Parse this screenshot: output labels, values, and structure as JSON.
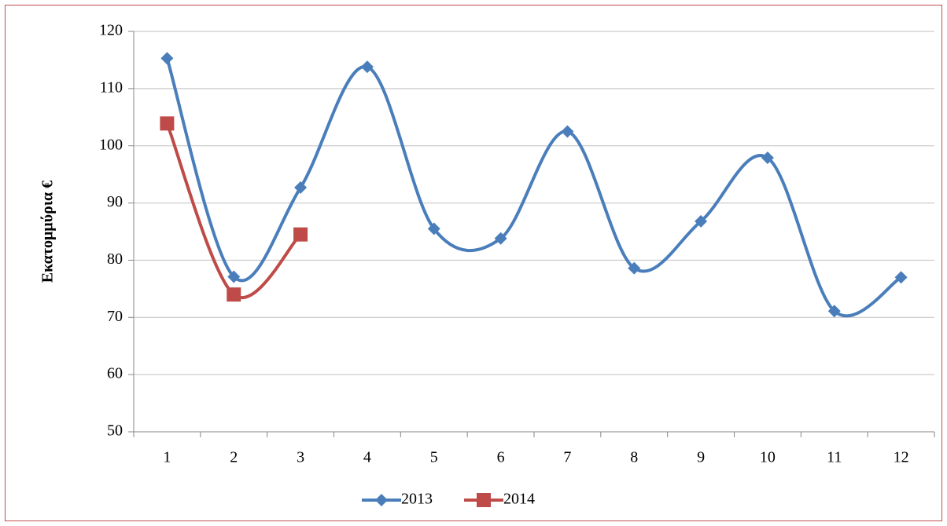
{
  "chart_data": {
    "type": "line",
    "y_label": "Εκατομμύρια €",
    "categories": [
      "1",
      "2",
      "3",
      "4",
      "5",
      "6",
      "7",
      "8",
      "9",
      "10",
      "11",
      "12"
    ],
    "series": [
      {
        "name": "2013",
        "color": "#4a7ebb",
        "marker": "diamond",
        "values": [
          115.3,
          77.1,
          92.7,
          113.8,
          85.5,
          83.8,
          102.5,
          78.6,
          86.8,
          97.9,
          71.1,
          77.0
        ]
      },
      {
        "name": "2014",
        "color": "#be4b48",
        "marker": "square",
        "values": [
          103.9,
          74.0,
          84.5,
          null,
          null,
          null,
          null,
          null,
          null,
          null,
          null,
          null
        ]
      }
    ],
    "ylim": [
      50,
      120
    ],
    "yticks": [
      50,
      60,
      70,
      80,
      90,
      100,
      110,
      120
    ],
    "grid": true,
    "smooth": true,
    "legend": "bottom"
  }
}
